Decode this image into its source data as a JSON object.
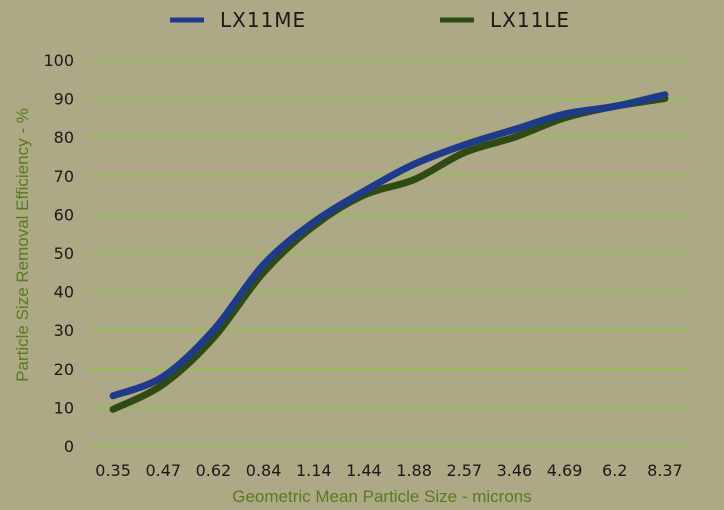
{
  "chart_data": {
    "type": "line",
    "categories": [
      "0.35",
      "0.47",
      "0.62",
      "0.84",
      "1.14",
      "1.44",
      "1.88",
      "2.57",
      "3.46",
      "4.69",
      "6.2",
      "8.37"
    ],
    "series": [
      {
        "name": "LX11ME",
        "color": "#1e3a8a",
        "values": [
          13,
          18,
          30,
          47,
          58,
          66,
          73,
          78,
          82,
          86,
          88,
          91
        ]
      },
      {
        "name": "LX11LE",
        "color": "#2f4a12",
        "values": [
          9.5,
          16,
          28,
          45,
          57,
          65,
          69,
          76,
          80,
          85,
          88,
          90
        ]
      }
    ],
    "xlabel": "Geometric Mean Particle Size - microns",
    "ylabel": "Particle Size Removal Efficiency - %",
    "yticks": [
      "0",
      "10",
      "20",
      "30",
      "40",
      "50",
      "60",
      "70",
      "80",
      "90",
      "100"
    ],
    "ylim": [
      0,
      100
    ],
    "grid": true,
    "legend_position": "top",
    "colors": {
      "background": "#ada986",
      "gridline": "#8bc34a",
      "axis_title": "#5a7a1e"
    }
  }
}
